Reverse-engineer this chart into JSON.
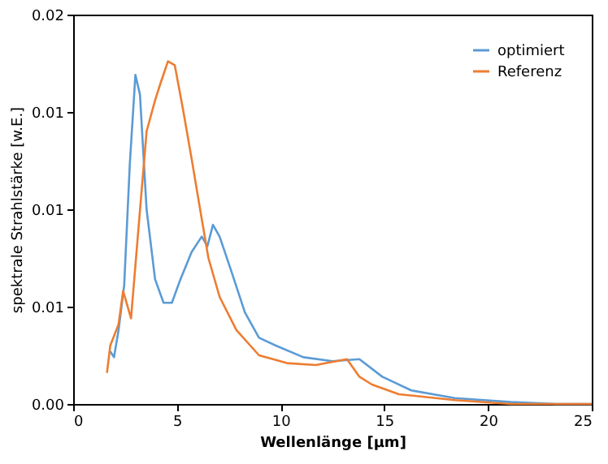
{
  "chart_data": {
    "type": "line",
    "xlabel": "Wellenlänge [µm]",
    "ylabel": "spektrale Strahlstärke [w.E.]",
    "xlim": [
      0,
      25
    ],
    "xticks": [
      0,
      5,
      10,
      15,
      20,
      25
    ],
    "ylim": [
      0,
      0.02
    ],
    "yticks": [
      {
        "value": 0,
        "label": "0.00"
      },
      {
        "value": 0.005,
        "label": "0.01"
      },
      {
        "value": 0.01,
        "label": "0.01"
      },
      {
        "value": 0.015,
        "label": "0.01"
      },
      {
        "value": 0.02,
        "label": "0.02"
      }
    ],
    "grid": false,
    "legend": "top right",
    "marker": "none",
    "line_style": "solid",
    "series": [
      {
        "name": "optimiert",
        "color": "#5b9bd5",
        "x": [
          1.79,
          1.97,
          2.19,
          2.46,
          2.73,
          3.0,
          3.22,
          3.54,
          3.95,
          4.36,
          4.76,
          5.17,
          5.71,
          6.2,
          6.47,
          6.74,
          7.06,
          7.6,
          8.28,
          8.96,
          9.77,
          11.1,
          12.5,
          13.8,
          14.9,
          16.3,
          18.4,
          21.1,
          23.3,
          25
        ],
        "values": [
          0.0027,
          0.0024,
          0.0038,
          0.0061,
          0.0123,
          0.0169,
          0.0159,
          0.01,
          0.0064,
          0.0052,
          0.0052,
          0.0064,
          0.0078,
          0.0086,
          0.0081,
          0.0092,
          0.0086,
          0.0069,
          0.0047,
          0.0034,
          0.003,
          0.0024,
          0.0022,
          0.0023,
          0.0014,
          0.0007,
          0.0003,
          0.0001,
          0,
          0
        ]
      },
      {
        "name": "Referenz",
        "color": "#ed7d31",
        "x": [
          1.63,
          1.79,
          2.19,
          2.41,
          2.79,
          3.14,
          3.54,
          3.95,
          4.22,
          4.57,
          4.9,
          5.3,
          5.71,
          6.12,
          6.52,
          7.06,
          7.87,
          8.96,
          10.3,
          11.7,
          13.2,
          13.8,
          14.4,
          15.7,
          18.4,
          21.1,
          25
        ],
        "values": [
          0.0016,
          0.003,
          0.0041,
          0.0058,
          0.0044,
          0.0089,
          0.014,
          0.0156,
          0.0165,
          0.0176,
          0.0174,
          0.0151,
          0.0126,
          0.01,
          0.0075,
          0.0055,
          0.0038,
          0.0025,
          0.0021,
          0.002,
          0.0023,
          0.0014,
          0.001,
          0.0005,
          0.0002,
          0,
          0
        ]
      }
    ]
  }
}
